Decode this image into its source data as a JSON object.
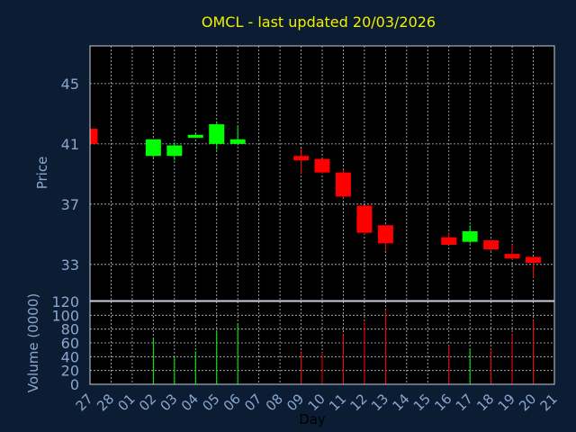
{
  "chart_data": {
    "type": "candlestick",
    "title": "OMCL - last updated 20/03/2026",
    "xlabel": "Day",
    "ylabel": "Price",
    "volume_ylabel": "Volume (0000)",
    "x_ticks": [
      "27",
      "28",
      "01",
      "02",
      "03",
      "04",
      "05",
      "06",
      "07",
      "08",
      "09",
      "10",
      "11",
      "12",
      "13",
      "14",
      "15",
      "16",
      "17",
      "18",
      "19",
      "20",
      "21"
    ],
    "price_ylim": [
      30.6,
      47.5
    ],
    "price_yticks": [
      33,
      37,
      41,
      45
    ],
    "volume_ylim": [
      0,
      120
    ],
    "volume_yticks": [
      0,
      20,
      40,
      60,
      80,
      100,
      120
    ],
    "grid": true,
    "colors": {
      "up": "#00ff00",
      "down": "#ff0000",
      "background": "#0c1d33",
      "plot_background": "#000000",
      "title": "#f0f000",
      "axis_text": "#8aa6cf"
    },
    "candles": [
      {
        "day": "27",
        "open": 42.0,
        "high": 42.0,
        "low": 41.0,
        "close": 41.0,
        "volume": 0
      },
      {
        "day": "02",
        "open": 40.2,
        "high": 41.3,
        "low": 40.1,
        "close": 41.3,
        "volume": 67
      },
      {
        "day": "03",
        "open": 40.2,
        "high": 41.1,
        "low": 39.9,
        "close": 40.9,
        "volume": 40
      },
      {
        "day": "04",
        "open": 41.4,
        "high": 41.7,
        "low": 41.4,
        "close": 41.6,
        "volume": 48
      },
      {
        "day": "05",
        "open": 41.0,
        "high": 42.5,
        "low": 40.6,
        "close": 42.3,
        "volume": 78
      },
      {
        "day": "06",
        "open": 41.0,
        "high": 42.2,
        "low": 40.9,
        "close": 41.3,
        "volume": 88
      },
      {
        "day": "09",
        "open": 40.2,
        "high": 40.7,
        "low": 39.0,
        "close": 39.9,
        "volume": 48
      },
      {
        "day": "10",
        "open": 40.0,
        "high": 40.0,
        "low": 39.0,
        "close": 39.1,
        "volume": 46
      },
      {
        "day": "11",
        "open": 39.1,
        "high": 39.3,
        "low": 37.4,
        "close": 37.5,
        "volume": 73
      },
      {
        "day": "12",
        "open": 36.9,
        "high": 36.9,
        "low": 35.0,
        "close": 35.1,
        "volume": 90
      },
      {
        "day": "13",
        "open": 35.6,
        "high": 35.6,
        "low": 33.9,
        "close": 34.4,
        "volume": 108
      },
      {
        "day": "16",
        "open": 34.8,
        "high": 35.1,
        "low": 34.3,
        "close": 34.3,
        "volume": 57
      },
      {
        "day": "17",
        "open": 34.5,
        "high": 35.6,
        "low": 34.4,
        "close": 35.2,
        "volume": 52
      },
      {
        "day": "18",
        "open": 34.6,
        "high": 34.6,
        "low": 33.9,
        "close": 34.0,
        "volume": 52
      },
      {
        "day": "19",
        "open": 33.7,
        "high": 34.3,
        "low": 33.3,
        "close": 33.4,
        "volume": 72
      },
      {
        "day": "20",
        "open": 33.5,
        "high": 33.5,
        "low": 32.1,
        "close": 33.1,
        "volume": 93
      }
    ]
  }
}
